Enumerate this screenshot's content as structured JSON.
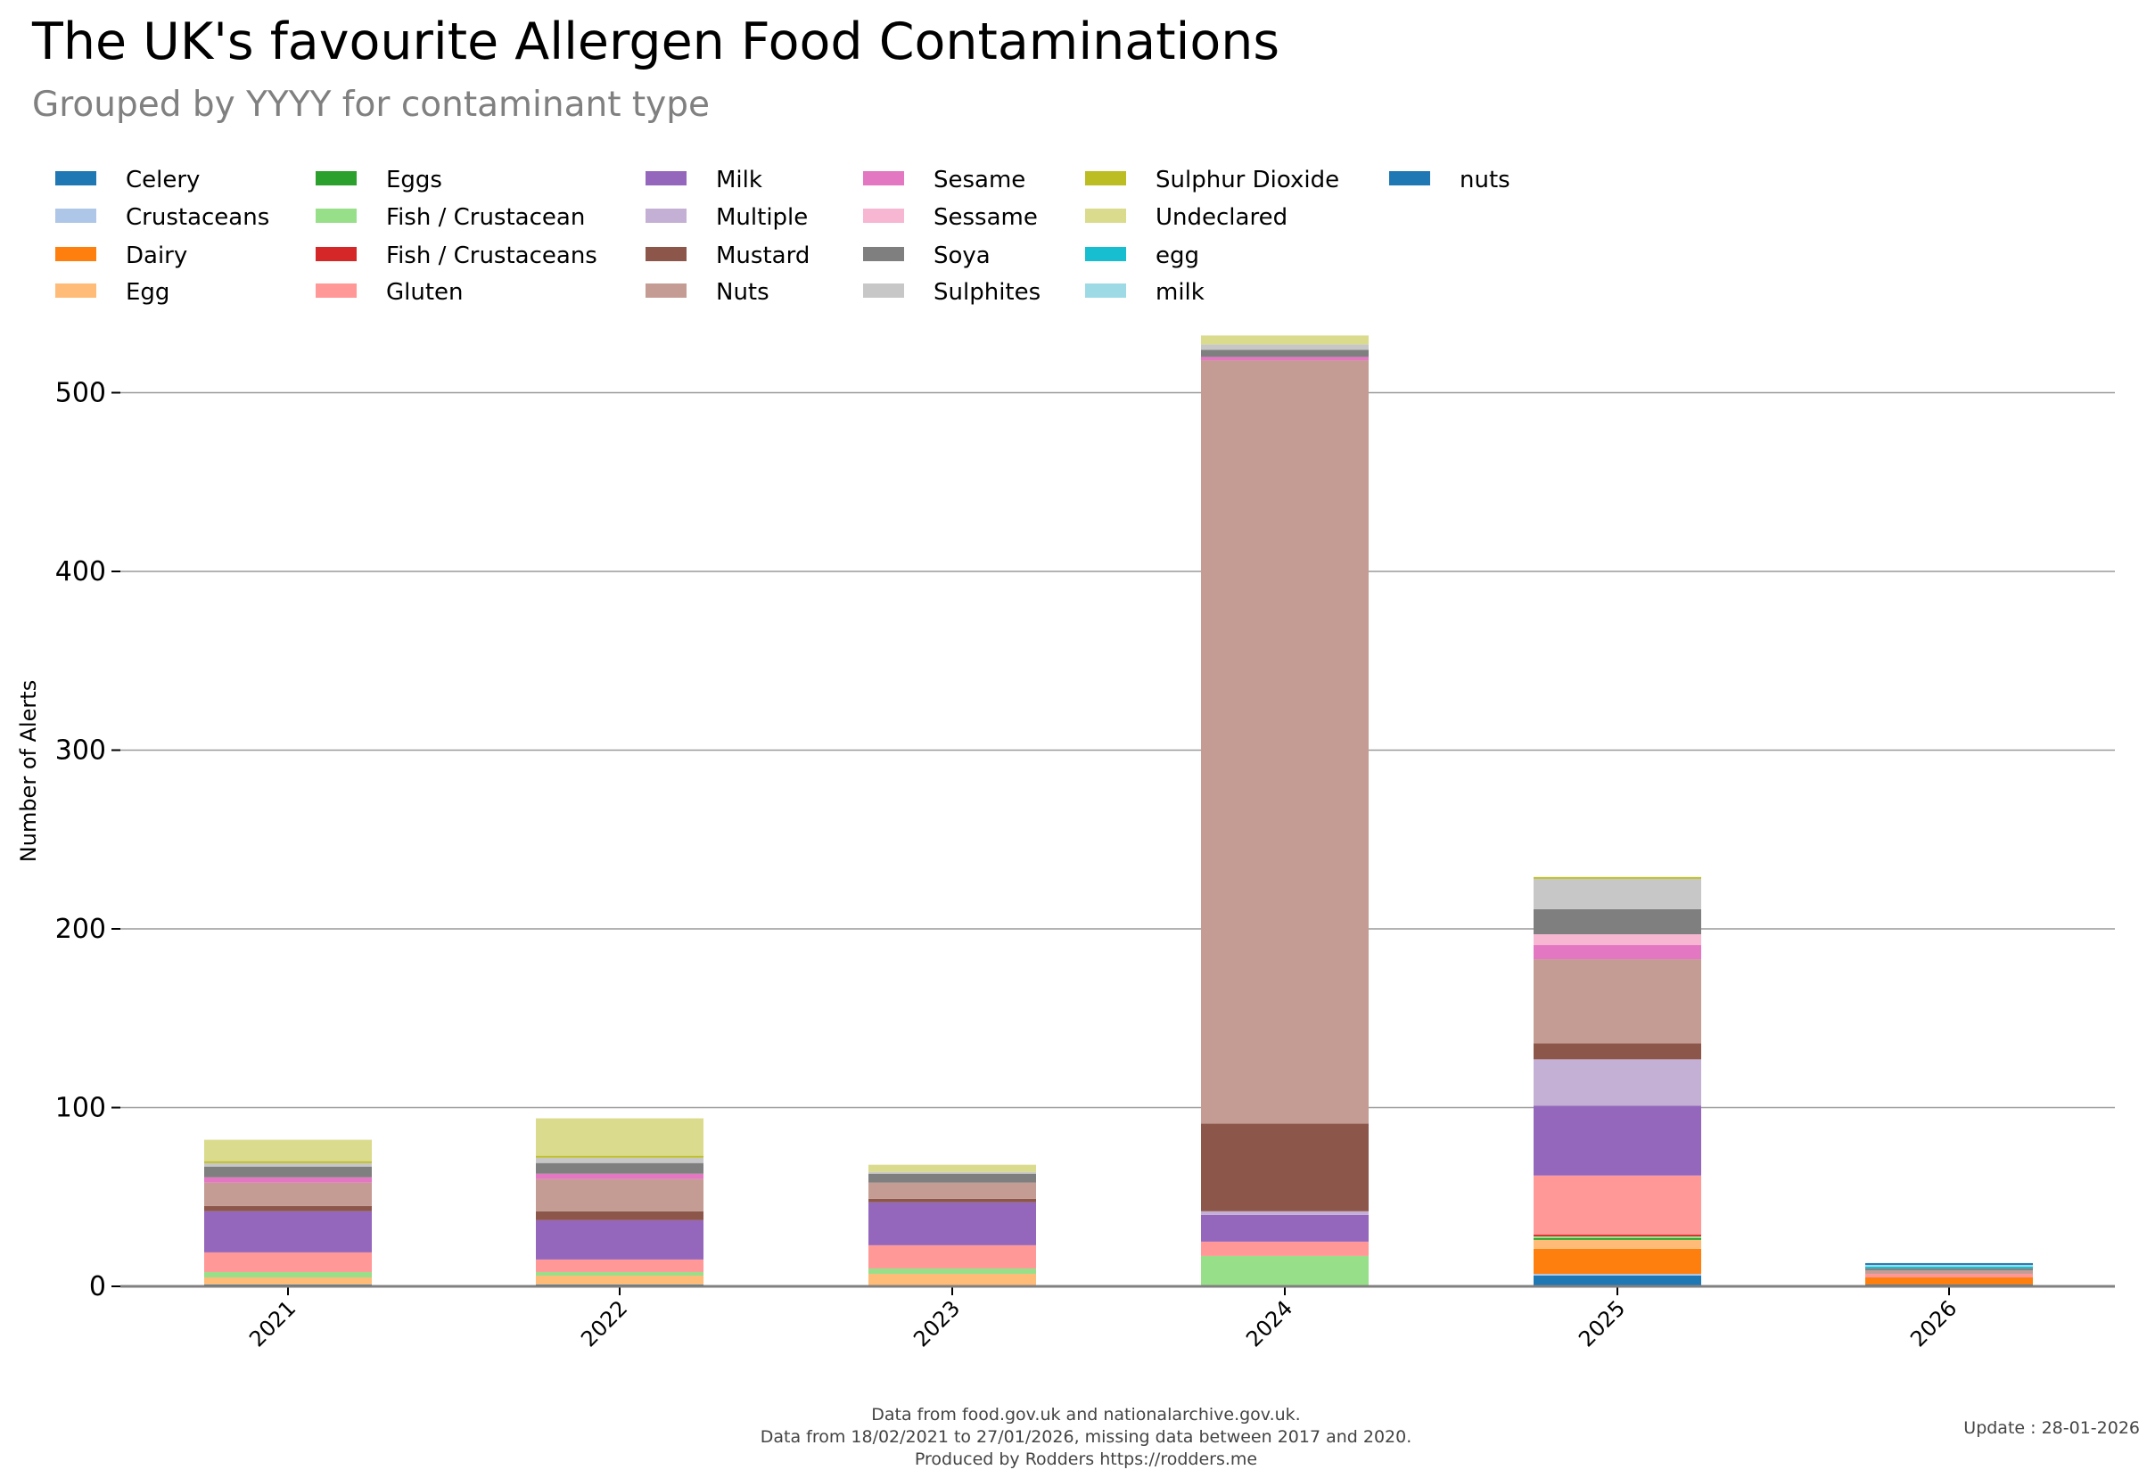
{
  "title": "The UK's favourite Allergen Food Contaminations",
  "subtitle": "Grouped by YYYY for contaminant type",
  "footer": {
    "lines": [
      "Data from food.gov.uk and nationalarchive.gov.uk.",
      "Data from 18/02/2021 to 27/01/2026, missing data between 2017 and 2020.",
      "Produced by Rodders https://rodders.me"
    ],
    "update": "Update : 28-01-2026"
  },
  "chart_data": {
    "type": "bar",
    "stacked": true,
    "title": "The UK's favourite Allergen Food Contaminations",
    "subtitle": "Grouped by YYYY for contaminant type",
    "xlabel": "",
    "ylabel": "Number of Alerts",
    "ylim": [
      0,
      540
    ],
    "yticks": [
      0,
      100,
      200,
      300,
      400,
      500
    ],
    "grid": "horizontal",
    "legend_placement": "top",
    "categories": [
      "2021",
      "2022",
      "2023",
      "2024",
      "2025",
      "2026"
    ],
    "series": [
      {
        "name": "Celery",
        "color": "#1f77b4",
        "values": [
          1,
          1,
          0,
          0,
          6,
          1
        ]
      },
      {
        "name": "Crustaceans",
        "color": "#aec7e8",
        "values": [
          0,
          0,
          0,
          0,
          1,
          0
        ]
      },
      {
        "name": "Dairy",
        "color": "#ff7f0e",
        "values": [
          0,
          0,
          0,
          0,
          14,
          4
        ]
      },
      {
        "name": "Egg",
        "color": "#ffbb78",
        "values": [
          4,
          5,
          7,
          0,
          5,
          0
        ]
      },
      {
        "name": "Eggs",
        "color": "#2ca02c",
        "values": [
          0,
          0,
          0,
          0,
          1,
          0
        ]
      },
      {
        "name": "Fish / Crustacean",
        "color": "#98df8a",
        "values": [
          3,
          2,
          3,
          17,
          1,
          0
        ]
      },
      {
        "name": "Fish / Crustaceans",
        "color": "#d62728",
        "values": [
          0,
          0,
          0,
          0,
          1,
          0
        ]
      },
      {
        "name": "Gluten",
        "color": "#ff9896",
        "values": [
          11,
          7,
          13,
          8,
          33,
          2
        ]
      },
      {
        "name": "Milk",
        "color": "#9467bd",
        "values": [
          23,
          22,
          24,
          15,
          39,
          0
        ]
      },
      {
        "name": "Multiple",
        "color": "#c5b0d5",
        "values": [
          0,
          0,
          0,
          2,
          26,
          0
        ]
      },
      {
        "name": "Mustard",
        "color": "#8c564b",
        "values": [
          3,
          5,
          2,
          49,
          9,
          0
        ]
      },
      {
        "name": "Nuts",
        "color": "#c49c94",
        "values": [
          13,
          18,
          9,
          427,
          47,
          2
        ]
      },
      {
        "name": "Sesame",
        "color": "#e377c2",
        "values": [
          3,
          3,
          0,
          2,
          8,
          0
        ]
      },
      {
        "name": "Sessame",
        "color": "#f7b6d2",
        "values": [
          0,
          0,
          0,
          0,
          6,
          0
        ]
      },
      {
        "name": "Soya",
        "color": "#7f7f7f",
        "values": [
          6,
          6,
          5,
          4,
          14,
          1
        ]
      },
      {
        "name": "Sulphites",
        "color": "#c7c7c7",
        "values": [
          2,
          3,
          1,
          3,
          17,
          0
        ]
      },
      {
        "name": "Sulphur Dioxide",
        "color": "#bcbd22",
        "values": [
          1,
          1,
          0,
          0,
          1,
          0
        ]
      },
      {
        "name": "Undeclared",
        "color": "#dbdb8d",
        "values": [
          12,
          21,
          4,
          5,
          0,
          0
        ]
      },
      {
        "name": "egg",
        "color": "#17becf",
        "values": [
          0,
          0,
          0,
          0,
          0,
          1
        ]
      },
      {
        "name": "milk",
        "color": "#9edae5",
        "values": [
          0,
          0,
          0,
          0,
          0,
          1
        ]
      },
      {
        "name": "nuts",
        "color": "#1f77b4",
        "values": [
          0,
          0,
          0,
          0,
          0,
          1
        ]
      }
    ]
  }
}
